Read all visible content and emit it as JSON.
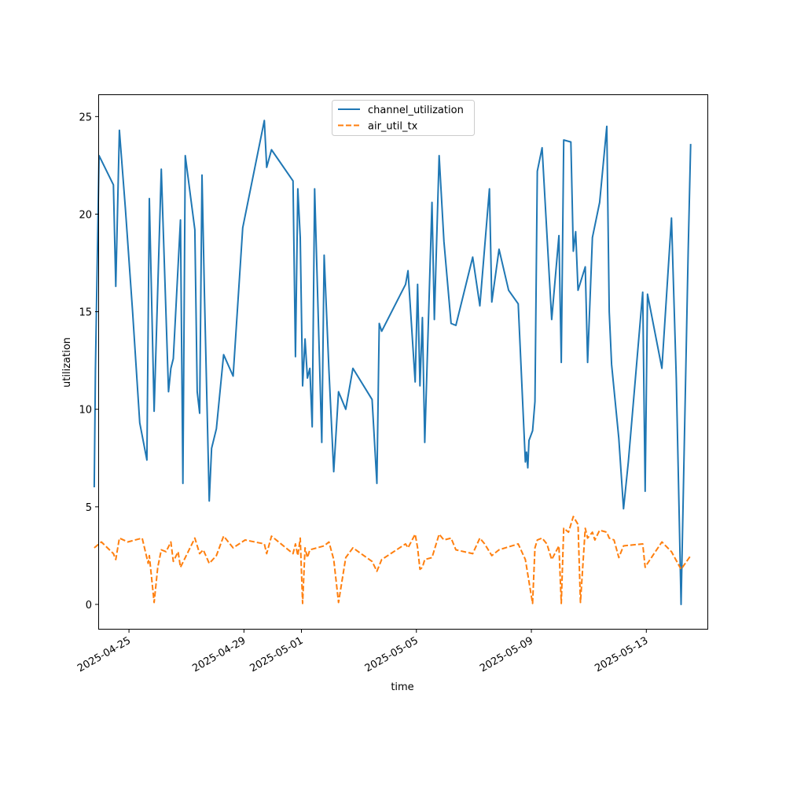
{
  "chart_data": {
    "type": "line",
    "title": "",
    "xlabel": "time",
    "ylabel": "utilization",
    "xlim": [
      "2025-04-23T23:00",
      "2025-05-15T03:00"
    ],
    "ylim": [
      -1.25,
      26.1
    ],
    "x_ticks": [
      "2025-04-25",
      "2025-04-29",
      "2025-05-01",
      "2025-05-05",
      "2025-05-09",
      "2025-05-13"
    ],
    "y_ticks": [
      0,
      5,
      10,
      15,
      20,
      25
    ],
    "legend_position": "top-center",
    "grid": false,
    "series": [
      {
        "name": "channel_utilization",
        "color": "#1f77b4",
        "dash": "solid",
        "points": [
          [
            "2025-04-23T19:00",
            6.0
          ],
          [
            "2025-04-23T20:00",
            12.0
          ],
          [
            "2025-04-23T23:00",
            23.0
          ],
          [
            "2025-04-24T11:00",
            21.5
          ],
          [
            "2025-04-24T13:00",
            16.3
          ],
          [
            "2025-04-24T16:00",
            24.3
          ],
          [
            "2025-04-24T21:00",
            20.3
          ],
          [
            "2025-04-25T03:00",
            15.0
          ],
          [
            "2025-04-25T09:00",
            9.3
          ],
          [
            "2025-04-25T15:00",
            7.4
          ],
          [
            "2025-04-25T17:00",
            20.8
          ],
          [
            "2025-04-25T21:00",
            9.9
          ],
          [
            "2025-04-26T03:00",
            22.3
          ],
          [
            "2025-04-26T09:00",
            10.9
          ],
          [
            "2025-04-26T11:00",
            12.1
          ],
          [
            "2025-04-26T13:00",
            12.6
          ],
          [
            "2025-04-26T19:00",
            19.7
          ],
          [
            "2025-04-26T21:00",
            6.2
          ],
          [
            "2025-04-26T23:00",
            23.0
          ],
          [
            "2025-04-27T07:00",
            19.2
          ],
          [
            "2025-04-27T09:00",
            10.9
          ],
          [
            "2025-04-27T11:00",
            9.8
          ],
          [
            "2025-04-27T13:00",
            22.0
          ],
          [
            "2025-04-27T15:00",
            15.9
          ],
          [
            "2025-04-27T19:00",
            5.3
          ],
          [
            "2025-04-27T21:00",
            8.0
          ],
          [
            "2025-04-28T01:00",
            9.0
          ],
          [
            "2025-04-28T07:00",
            12.8
          ],
          [
            "2025-04-28T15:00",
            11.7
          ],
          [
            "2025-04-28T23:00",
            19.3
          ],
          [
            "2025-04-29T17:00",
            24.8
          ],
          [
            "2025-04-29T19:00",
            22.4
          ],
          [
            "2025-04-29T23:00",
            23.3
          ],
          [
            "2025-04-30T17:00",
            21.7
          ],
          [
            "2025-04-30T19:00",
            12.7
          ],
          [
            "2025-04-30T21:00",
            21.3
          ],
          [
            "2025-04-30T23:00",
            18.8
          ],
          [
            "2025-05-01T01:00",
            11.2
          ],
          [
            "2025-05-01T03:00",
            13.6
          ],
          [
            "2025-05-01T05:00",
            11.6
          ],
          [
            "2025-05-01T07:00",
            12.1
          ],
          [
            "2025-05-01T09:00",
            9.1
          ],
          [
            "2025-05-01T11:00",
            21.3
          ],
          [
            "2025-05-01T17:00",
            8.3
          ],
          [
            "2025-05-01T19:00",
            17.9
          ],
          [
            "2025-05-01T23:00",
            12.0
          ],
          [
            "2025-05-02T03:00",
            6.8
          ],
          [
            "2025-05-02T07:00",
            10.9
          ],
          [
            "2025-05-02T13:00",
            10.0
          ],
          [
            "2025-05-02T19:00",
            12.1
          ],
          [
            "2025-05-03T11:00",
            10.5
          ],
          [
            "2025-05-03T15:00",
            6.2
          ],
          [
            "2025-05-03T17:00",
            14.4
          ],
          [
            "2025-05-03T19:00",
            14.0
          ],
          [
            "2025-05-04T15:00",
            16.4
          ],
          [
            "2025-05-04T17:00",
            17.1
          ],
          [
            "2025-05-04T23:00",
            11.4
          ],
          [
            "2025-05-05T01:00",
            16.4
          ],
          [
            "2025-05-05T03:00",
            11.2
          ],
          [
            "2025-05-05T05:00",
            14.7
          ],
          [
            "2025-05-05T07:00",
            8.3
          ],
          [
            "2025-05-05T13:00",
            20.6
          ],
          [
            "2025-05-05T15:00",
            14.6
          ],
          [
            "2025-05-05T19:00",
            23.0
          ],
          [
            "2025-05-05T23:00",
            18.6
          ],
          [
            "2025-05-06T05:00",
            14.4
          ],
          [
            "2025-05-06T09:00",
            14.3
          ],
          [
            "2025-05-06T23:00",
            17.8
          ],
          [
            "2025-05-07T05:00",
            15.3
          ],
          [
            "2025-05-07T13:00",
            21.3
          ],
          [
            "2025-05-07T15:00",
            15.5
          ],
          [
            "2025-05-07T21:00",
            18.2
          ],
          [
            "2025-05-08T05:00",
            16.1
          ],
          [
            "2025-05-08T13:00",
            15.4
          ],
          [
            "2025-05-08T19:00",
            7.3
          ],
          [
            "2025-05-08T20:00",
            7.8
          ],
          [
            "2025-05-08T21:00",
            7.0
          ],
          [
            "2025-05-08T22:00",
            8.4
          ],
          [
            "2025-05-09T01:00",
            8.9
          ],
          [
            "2025-05-09T03:00",
            10.4
          ],
          [
            "2025-05-09T05:00",
            22.2
          ],
          [
            "2025-05-09T09:00",
            23.4
          ],
          [
            "2025-05-09T17:00",
            14.6
          ],
          [
            "2025-05-09T23:00",
            18.9
          ],
          [
            "2025-05-10T01:00",
            12.4
          ],
          [
            "2025-05-10T03:00",
            23.8
          ],
          [
            "2025-05-10T09:00",
            23.7
          ],
          [
            "2025-05-10T11:00",
            18.1
          ],
          [
            "2025-05-10T13:00",
            19.1
          ],
          [
            "2025-05-10T15:00",
            16.1
          ],
          [
            "2025-05-10T21:00",
            17.3
          ],
          [
            "2025-05-10T23:00",
            12.4
          ],
          [
            "2025-05-11T03:00",
            18.8
          ],
          [
            "2025-05-11T09:00",
            20.6
          ],
          [
            "2025-05-11T15:00",
            24.5
          ],
          [
            "2025-05-11T17:00",
            15.0
          ],
          [
            "2025-05-11T19:00",
            12.3
          ],
          [
            "2025-05-12T01:00",
            8.5
          ],
          [
            "2025-05-12T05:00",
            4.9
          ],
          [
            "2025-05-12T09:00",
            7.3
          ],
          [
            "2025-05-12T21:00",
            16.0
          ],
          [
            "2025-05-12T23:00",
            5.8
          ],
          [
            "2025-05-13T01:00",
            15.9
          ],
          [
            "2025-05-13T13:00",
            12.1
          ],
          [
            "2025-05-13T21:00",
            19.8
          ],
          [
            "2025-05-14T01:00",
            11.6
          ],
          [
            "2025-05-14T05:00",
            0.0
          ],
          [
            "2025-05-14T11:00",
            18.2
          ],
          [
            "2025-05-14T13:00",
            23.6
          ]
        ]
      },
      {
        "name": "air_util_tx",
        "color": "#ff7f0e",
        "dash": "dashed",
        "points": [
          [
            "2025-04-23T19:00",
            2.9
          ],
          [
            "2025-04-24T01:00",
            3.2
          ],
          [
            "2025-04-24T11:00",
            2.6
          ],
          [
            "2025-04-24T13:00",
            2.3
          ],
          [
            "2025-04-24T16:00",
            3.4
          ],
          [
            "2025-04-24T23:00",
            3.2
          ],
          [
            "2025-04-25T11:00",
            3.4
          ],
          [
            "2025-04-25T16:00",
            2.1
          ],
          [
            "2025-04-25T17:00",
            2.5
          ],
          [
            "2025-04-25T18:00",
            1.9
          ],
          [
            "2025-04-25T21:00",
            0.1
          ],
          [
            "2025-04-26T00:00",
            1.9
          ],
          [
            "2025-04-26T03:00",
            2.8
          ],
          [
            "2025-04-26T07:00",
            2.7
          ],
          [
            "2025-04-26T11:00",
            3.2
          ],
          [
            "2025-04-26T13:00",
            2.2
          ],
          [
            "2025-04-26T17:00",
            2.7
          ],
          [
            "2025-04-26T19:00",
            1.9
          ],
          [
            "2025-04-26T23:00",
            2.4
          ],
          [
            "2025-04-27T07:00",
            3.4
          ],
          [
            "2025-04-27T11:00",
            2.6
          ],
          [
            "2025-04-27T14:00",
            2.8
          ],
          [
            "2025-04-27T19:00",
            2.1
          ],
          [
            "2025-04-28T01:00",
            2.5
          ],
          [
            "2025-04-28T07:00",
            3.5
          ],
          [
            "2025-04-28T15:00",
            2.9
          ],
          [
            "2025-04-29T01:00",
            3.3
          ],
          [
            "2025-04-29T17:00",
            3.1
          ],
          [
            "2025-04-29T19:00",
            2.6
          ],
          [
            "2025-04-29T23:00",
            3.5
          ],
          [
            "2025-04-30T17:00",
            2.6
          ],
          [
            "2025-04-30T19:00",
            3.1
          ],
          [
            "2025-04-30T21:00",
            2.5
          ],
          [
            "2025-04-30T23:00",
            3.4
          ],
          [
            "2025-05-01T01:00",
            0.05
          ],
          [
            "2025-05-01T03:00",
            2.9
          ],
          [
            "2025-05-01T05:00",
            2.4
          ],
          [
            "2025-05-01T07:00",
            2.8
          ],
          [
            "2025-05-01T19:00",
            3.0
          ],
          [
            "2025-05-01T23:00",
            3.2
          ],
          [
            "2025-05-02T03:00",
            2.3
          ],
          [
            "2025-05-02T07:00",
            0.1
          ],
          [
            "2025-05-02T13:00",
            2.4
          ],
          [
            "2025-05-02T19:00",
            2.9
          ],
          [
            "2025-05-03T11:00",
            2.2
          ],
          [
            "2025-05-03T15:00",
            1.7
          ],
          [
            "2025-05-03T19:00",
            2.3
          ],
          [
            "2025-05-04T15:00",
            3.1
          ],
          [
            "2025-05-04T17:00",
            2.9
          ],
          [
            "2025-05-04T23:00",
            3.6
          ],
          [
            "2025-05-05T01:00",
            2.9
          ],
          [
            "2025-05-05T03:00",
            1.8
          ],
          [
            "2025-05-05T05:00",
            1.9
          ],
          [
            "2025-05-05T07:00",
            2.3
          ],
          [
            "2025-05-05T13:00",
            2.4
          ],
          [
            "2025-05-05T19:00",
            3.6
          ],
          [
            "2025-05-05T23:00",
            3.3
          ],
          [
            "2025-05-06T05:00",
            3.4
          ],
          [
            "2025-05-06T09:00",
            2.8
          ],
          [
            "2025-05-06T23:00",
            2.6
          ],
          [
            "2025-05-07T05:00",
            3.4
          ],
          [
            "2025-05-07T09:00",
            3.1
          ],
          [
            "2025-05-07T15:00",
            2.5
          ],
          [
            "2025-05-07T21:00",
            2.8
          ],
          [
            "2025-05-08T13:00",
            3.1
          ],
          [
            "2025-05-08T19:00",
            2.3
          ],
          [
            "2025-05-08T23:00",
            0.8
          ],
          [
            "2025-05-09T01:00",
            0.05
          ],
          [
            "2025-05-09T03:00",
            2.9
          ],
          [
            "2025-05-09T05:00",
            3.3
          ],
          [
            "2025-05-09T09:00",
            3.4
          ],
          [
            "2025-05-09T13:00",
            3.1
          ],
          [
            "2025-05-09T17:00",
            2.3
          ],
          [
            "2025-05-09T23:00",
            3.0
          ],
          [
            "2025-05-10T01:00",
            0.05
          ],
          [
            "2025-05-10T03:00",
            3.9
          ],
          [
            "2025-05-10T07:00",
            3.7
          ],
          [
            "2025-05-10T11:00",
            4.5
          ],
          [
            "2025-05-10T15:00",
            4.1
          ],
          [
            "2025-05-10T17:00",
            0.1
          ],
          [
            "2025-05-10T21:00",
            3.9
          ],
          [
            "2025-05-10T23:00",
            3.4
          ],
          [
            "2025-05-11T03:00",
            3.7
          ],
          [
            "2025-05-11T05:00",
            3.3
          ],
          [
            "2025-05-11T09:00",
            3.8
          ],
          [
            "2025-05-11T15:00",
            3.7
          ],
          [
            "2025-05-11T17:00",
            3.4
          ],
          [
            "2025-05-11T21:00",
            3.3
          ],
          [
            "2025-05-12T01:00",
            2.4
          ],
          [
            "2025-05-12T05:00",
            3.0
          ],
          [
            "2025-05-12T21:00",
            3.1
          ],
          [
            "2025-05-12T23:00",
            1.9
          ],
          [
            "2025-05-13T01:00",
            2.1
          ],
          [
            "2025-05-13T13:00",
            3.2
          ],
          [
            "2025-05-13T21:00",
            2.7
          ],
          [
            "2025-05-14T05:00",
            1.8
          ],
          [
            "2025-05-14T13:00",
            2.5
          ]
        ]
      }
    ]
  }
}
